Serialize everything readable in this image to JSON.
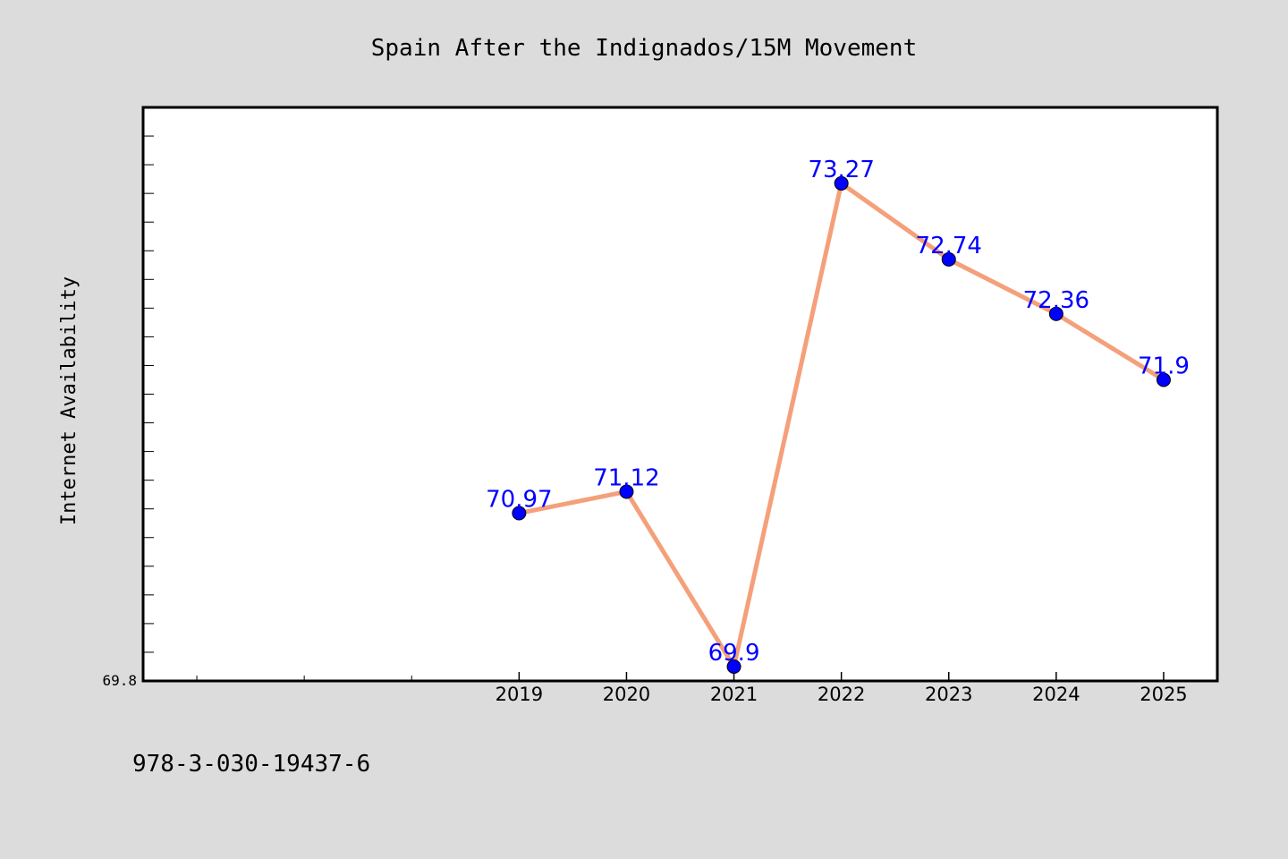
{
  "chart_data": {
    "type": "line",
    "title": "Spain After the Indignados/15M Movement",
    "xlabel": "",
    "ylabel": "Internet Availability",
    "x": [
      "2019",
      "2020",
      "2021",
      "2022",
      "2023",
      "2024",
      "2025"
    ],
    "series": [
      {
        "values": [
          70.97,
          71.12,
          69.9,
          73.27,
          72.74,
          72.36,
          71.9
        ]
      }
    ],
    "data_labels": [
      "70.97",
      "71.12",
      "69.9",
      "73.27",
      "72.74",
      "72.36",
      "71.9"
    ],
    "y_tick_labels": [
      "69.8"
    ],
    "ylim": [
      69.8,
      73.8
    ],
    "xlim": [
      2015.5,
      2025.5
    ],
    "grid": false,
    "legend": "none",
    "colors": {
      "line": "#f4a07a",
      "marker": "#0000ff",
      "data_label": "#0000ff",
      "plot_background": "#ffffff",
      "figure_background": "#dcdcdc"
    }
  },
  "footer": {
    "text": "978-3-030-19437-6"
  }
}
